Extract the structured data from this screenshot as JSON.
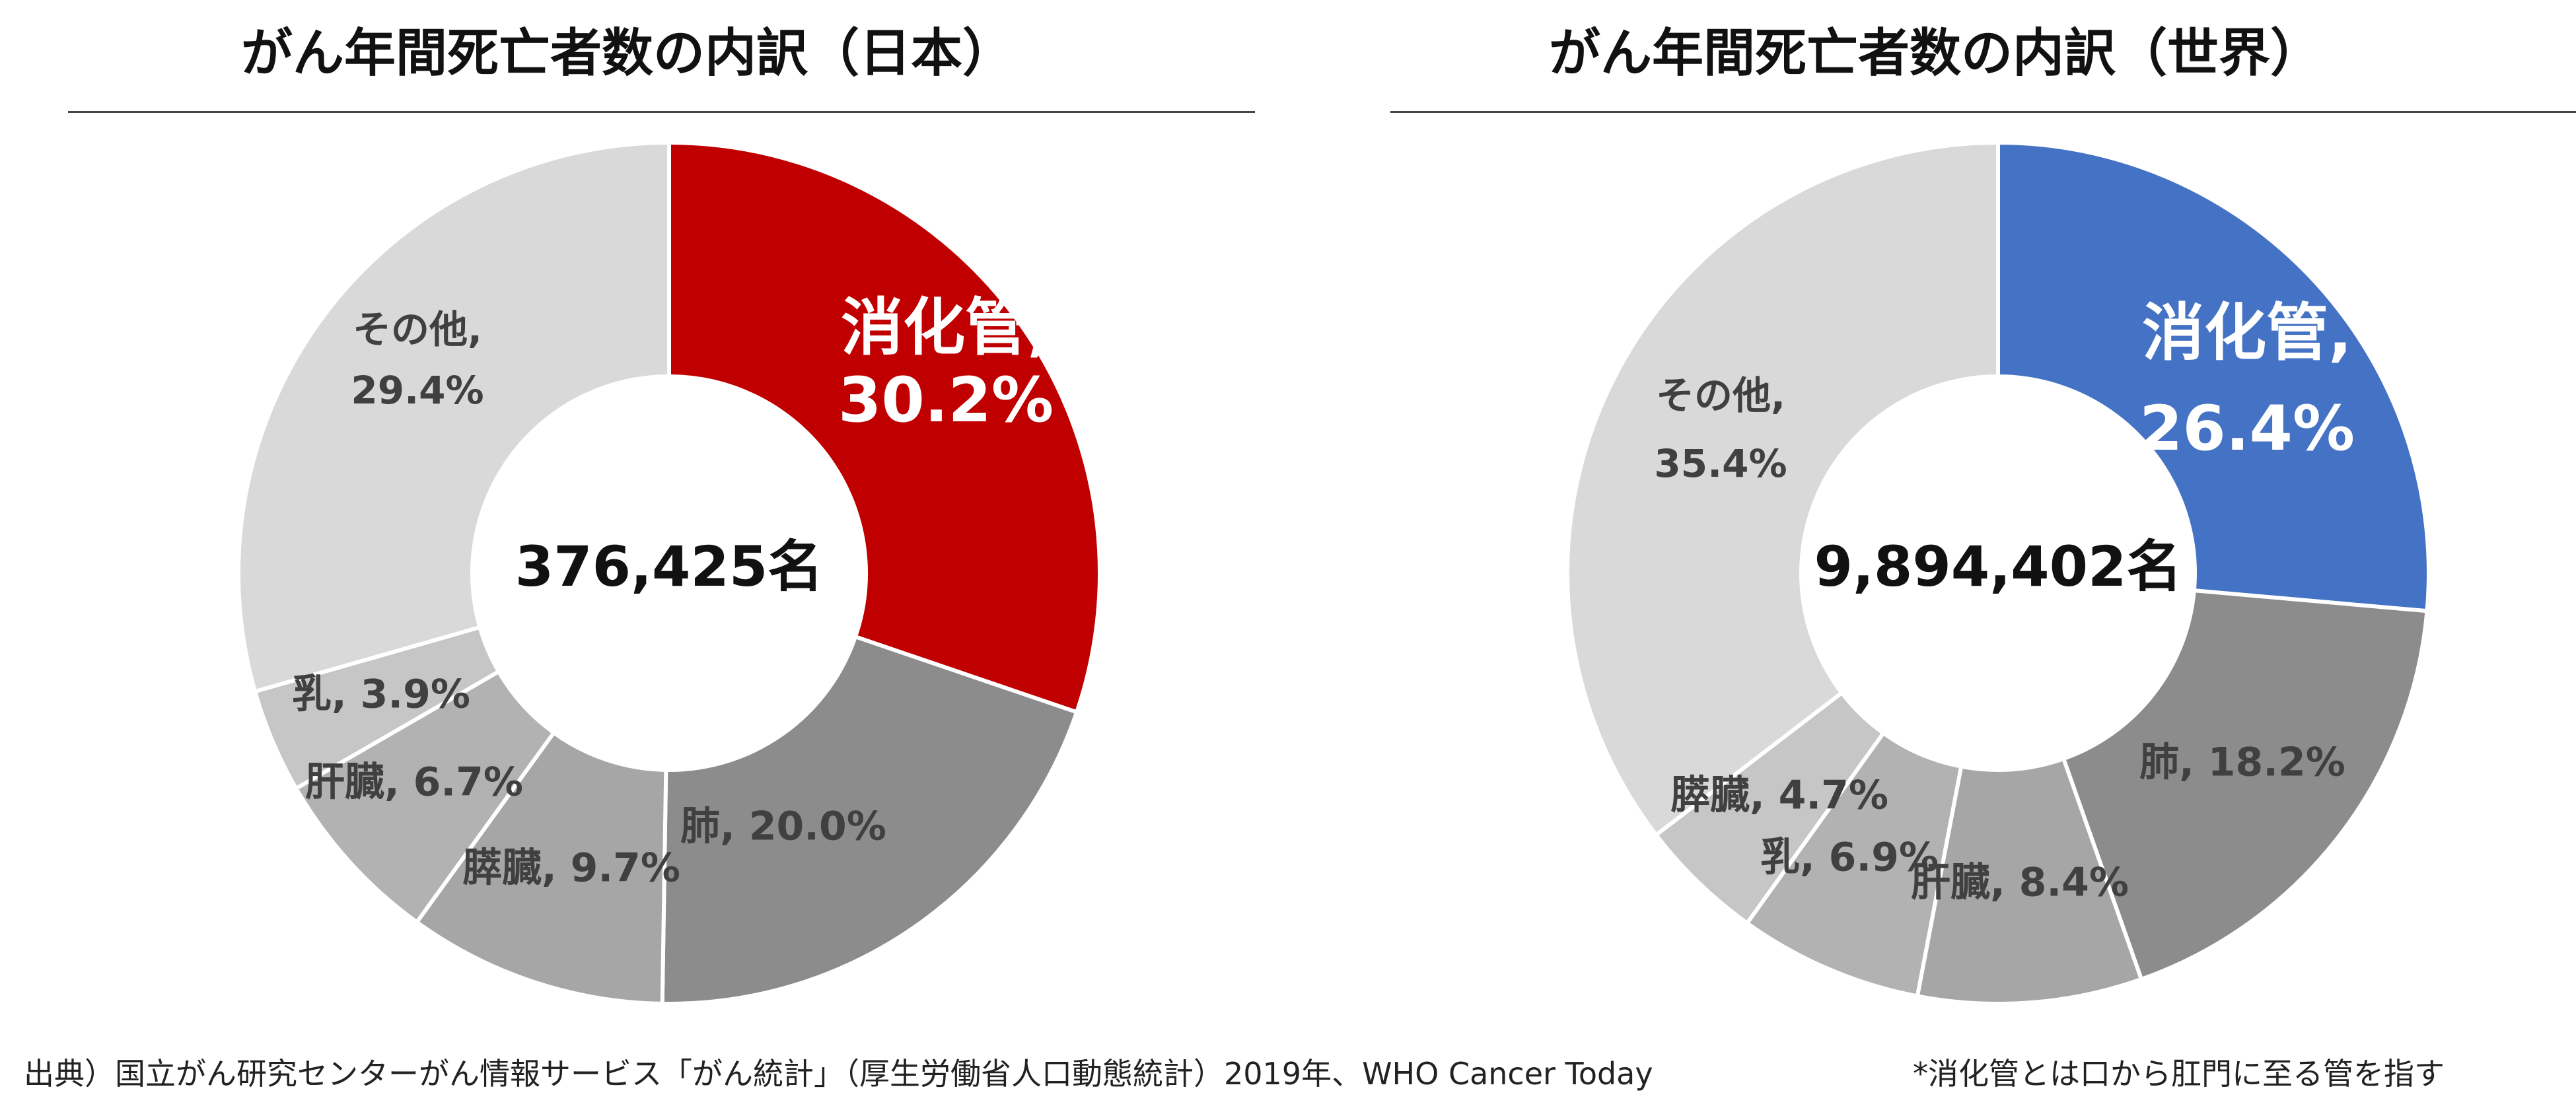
{
  "chart_data": [
    {
      "type": "pie",
      "title": "がん年間死亡者数の内訳（日本）",
      "center_label": "376,425名",
      "categories": [
        "消化管",
        "肺",
        "膵臓",
        "肝臓",
        "乳",
        "その他"
      ],
      "values": [
        30.2,
        20.0,
        9.7,
        6.7,
        3.9,
        29.4
      ],
      "slice_labels": [
        "消化管,",
        "肺, 20.0%",
        "膵臓, 9.7%",
        "肝臓, 6.7%",
        "乳, 3.9%",
        "その他,"
      ],
      "slice_labels_line2": [
        "30.2%",
        "",
        "",
        "",
        "",
        "29.4%"
      ],
      "colors": [
        "#C00000",
        "#8C8C8C",
        "#A6A6A6",
        "#B2B2B2",
        "#C6C6C6",
        "#D9D9D9"
      ]
    },
    {
      "type": "pie",
      "title": "がん年間死亡者数の内訳（世界）",
      "center_label": "9,894,402名",
      "categories": [
        "消化管",
        "肺",
        "肝臓",
        "乳",
        "膵臓",
        "その他"
      ],
      "values": [
        26.4,
        18.2,
        8.4,
        6.9,
        4.7,
        35.4
      ],
      "slice_labels": [
        "消化管,",
        "肺, 18.2%",
        "肝臓, 8.4%",
        "乳, 6.9%",
        "膵臓, 4.7%",
        "その他,"
      ],
      "slice_labels_line2": [
        "26.4%",
        "",
        "",
        "",
        "",
        "35.4%"
      ],
      "colors": [
        "#4472C4",
        "#8C8C8C",
        "#A6A6A6",
        "#B2B2B2",
        "#C6C6C6",
        "#D9D9D9"
      ]
    }
  ],
  "footer": {
    "source": "出典）国立がん研究センターがん情報サービス「がん統計」（厚生労働省人口動態統計）2019年、WHO Cancer Today",
    "note": "*消化管とは口から肛門に至る管を指す"
  }
}
